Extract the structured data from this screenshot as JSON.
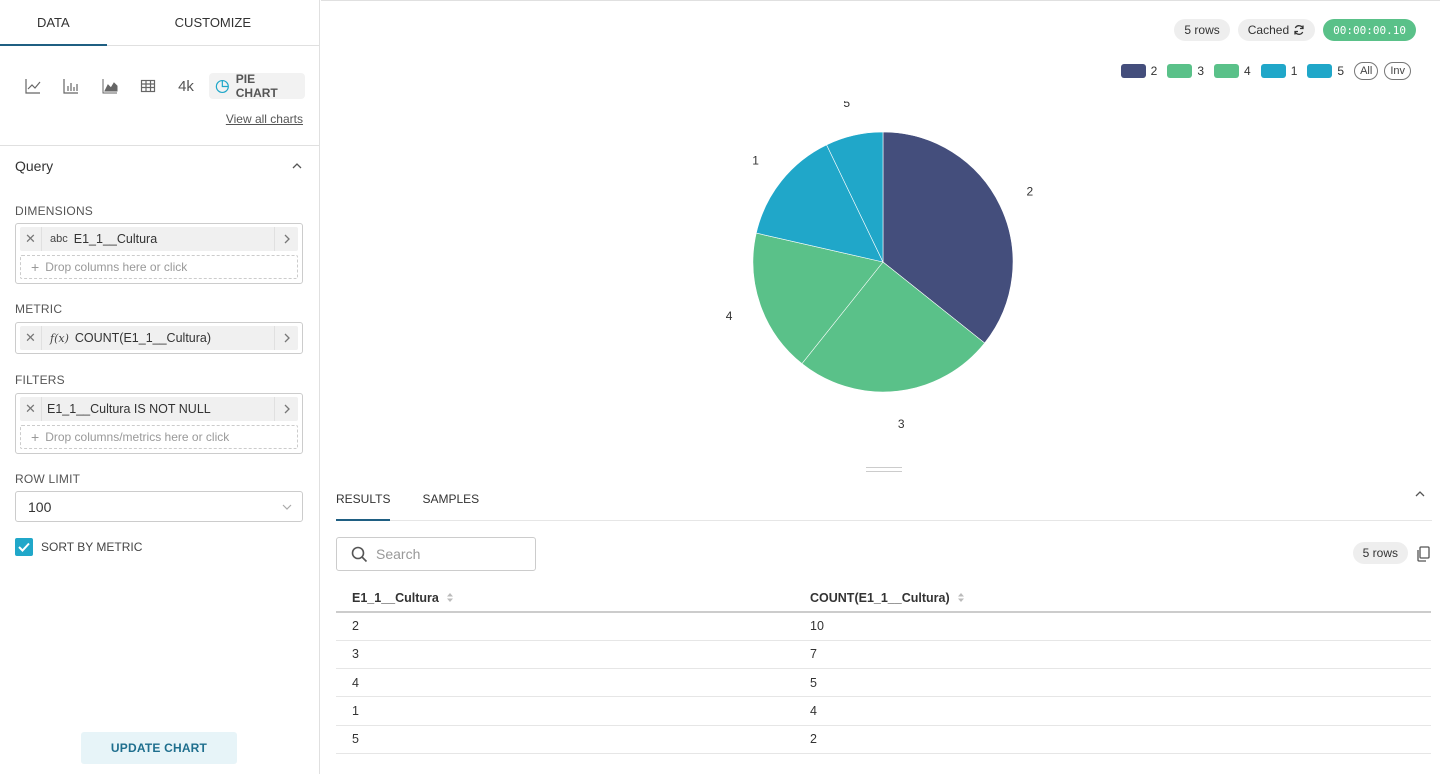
{
  "left": {
    "tabs": [
      "DATA",
      "CUSTOMIZE"
    ],
    "viz": {
      "icons": [
        "line-chart-icon",
        "bar-chart-icon",
        "area-chart-icon",
        "table-icon"
      ],
      "big_number": "4k",
      "pie_label": "PIE CHART",
      "view_all": "View all charts"
    },
    "query": {
      "title": "Query",
      "dimensions_label": "DIMENSIONS",
      "dimension": {
        "type": "abc",
        "name": "E1_1__Cultura"
      },
      "dimension_drop": "Drop columns here or click",
      "metric_label": "METRIC",
      "metric": {
        "type": "f(x)",
        "name": "COUNT(E1_1__Cultura)"
      },
      "filters_label": "FILTERS",
      "filter": "E1_1__Cultura IS NOT NULL",
      "filter_drop": "Drop columns/metrics here or click",
      "row_limit_label": "ROW LIMIT",
      "row_limit": "100",
      "sort_by_metric": "SORT BY METRIC",
      "sort_checked": true
    },
    "update_button": "UPDATE CHART"
  },
  "right": {
    "badges": {
      "rows": "5 rows",
      "cached": "Cached",
      "timer": "00:00:00.10"
    },
    "legend": {
      "all": "All",
      "inv": "Inv"
    },
    "results": {
      "tabs": [
        "RESULTS",
        "SAMPLES"
      ],
      "search_placeholder": "Search",
      "rows": "5 rows",
      "columns": [
        "E1_1__Cultura",
        "COUNT(E1_1__Cultura)"
      ],
      "data": [
        [
          "2",
          "10"
        ],
        [
          "3",
          "7"
        ],
        [
          "4",
          "5"
        ],
        [
          "1",
          "4"
        ],
        [
          "5",
          "2"
        ]
      ]
    }
  },
  "chart_data": {
    "type": "pie",
    "categories": [
      "2",
      "3",
      "4",
      "1",
      "5"
    ],
    "values": [
      10,
      7,
      5,
      4,
      2
    ],
    "colors": [
      "#444e7c",
      "#5ac189",
      "#5ac189",
      "#20a7c9",
      "#20a7c9"
    ]
  }
}
